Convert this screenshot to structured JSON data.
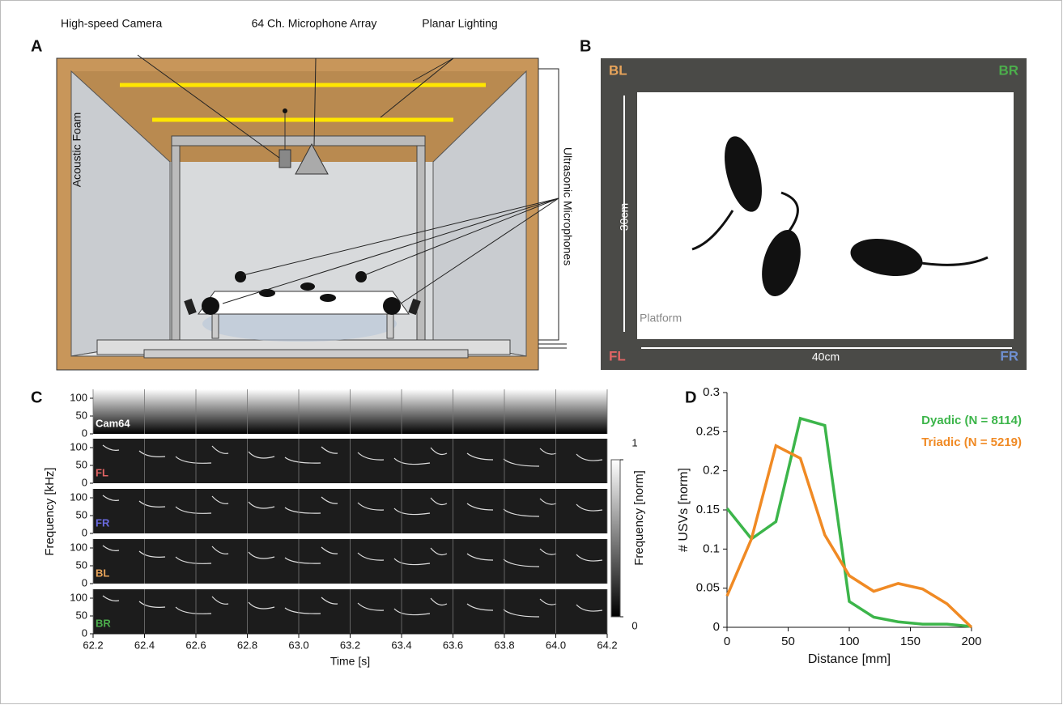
{
  "panel_labels": [
    "A",
    "B",
    "C",
    "D"
  ],
  "setup": {
    "camera": "High-speed Camera",
    "array": "64 Ch. Microphone Array",
    "lighting": "Planar Lighting",
    "foam": "Acoustic Foam",
    "microphones": "Ultrasonic Microphones"
  },
  "arena": {
    "corners": [
      {
        "label": "BL",
        "color": "#e8a45a"
      },
      {
        "label": "BR",
        "color": "#4cae4c"
      },
      {
        "label": "FL",
        "color": "#e06464"
      },
      {
        "label": "FR",
        "color": "#6f8fd0"
      }
    ],
    "height_label": "30cm",
    "width_label": "40cm",
    "platform": "Platform"
  },
  "spectrogram": {
    "channels": [
      {
        "label": "Cam64",
        "color": "#ffffff"
      },
      {
        "label": "FL",
        "color": "#e06464"
      },
      {
        "label": "FR",
        "color": "#6a6ae0"
      },
      {
        "label": "BL",
        "color": "#e8a45a"
      },
      {
        "label": "BR",
        "color": "#4cae4c"
      }
    ],
    "xlabel": "Time [s]",
    "ylabel": "Frequency [kHz]",
    "xlim": [
      62.2,
      64.2
    ],
    "xticks": [
      62.2,
      62.4,
      62.6,
      62.8,
      {
        "value": 63,
        "label": "63.0"
      },
      63.2,
      63.4,
      63.6,
      63.8,
      {
        "value": 64,
        "label": "64.0"
      },
      64.2
    ],
    "ylim": [
      0,
      125
    ],
    "yticks": [
      0,
      50,
      100
    ],
    "colorbar": {
      "label": "Frequency [norm]",
      "lim": [
        0,
        1
      ],
      "ticks": [
        0,
        1
      ]
    }
  },
  "chart_data": {
    "type": "line",
    "xlabel": "Distance [mm]",
    "ylabel": "# USVs [norm]",
    "x": [
      0,
      20,
      40,
      60,
      80,
      100,
      120,
      140,
      160,
      180,
      200
    ],
    "series": [
      {
        "name": "Dyadic (N = 8114)",
        "color": "#3cb54a",
        "values": [
          0.152,
          0.113,
          0.135,
          0.267,
          0.258,
          0.033,
          0.013,
          0.007,
          0.004,
          0.004,
          0.001
        ]
      },
      {
        "name": "Triadic (N = 5219)",
        "color": "#f08a24",
        "values": [
          0.04,
          0.113,
          0.232,
          0.216,
          0.118,
          0.066,
          0.046,
          0.056,
          0.049,
          0.03,
          0.0
        ]
      }
    ],
    "xlim": [
      0,
      200
    ],
    "xticks": [
      0,
      50,
      100,
      150,
      200
    ],
    "ylim": [
      0,
      0.3
    ],
    "yticks": [
      0,
      0.05,
      0.1,
      0.15,
      0.2,
      0.25,
      0.3
    ],
    "legend": "upper right"
  }
}
